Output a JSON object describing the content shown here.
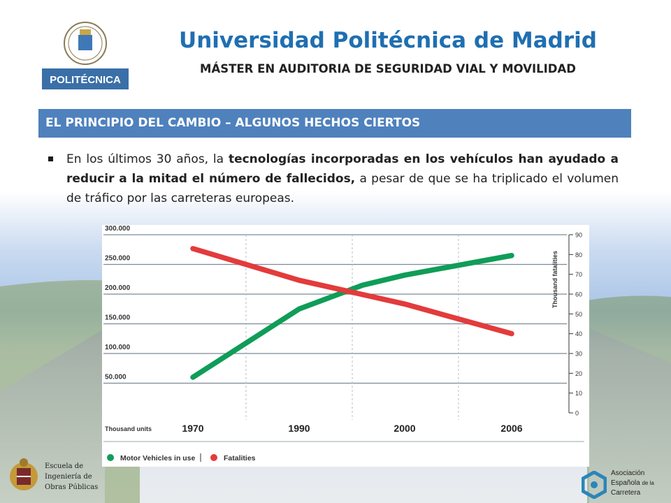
{
  "header": {
    "university": "Universidad Politécnica de Madrid",
    "master": "MÁSTER EN AUDITORIA DE SEGURIDAD VIAL Y MOVILIDAD",
    "logo_text": "POLITÉCNICA"
  },
  "section": {
    "title": "EL PRINCIPIO DEL CAMBIO – ALGUNOS HECHOS CIERTOS"
  },
  "bullet": {
    "part1": "En los últimos 30 años, la ",
    "bold": "tecnologías incorporadas en los vehículos han ayudado a reducir a la mitad el número de fallecidos,",
    "part2": " a pesar de que se ha triplicado el volumen de tráfico por las carreteras europeas."
  },
  "chart_data": {
    "type": "line",
    "x": [
      "1970",
      "1990",
      "2000",
      "2006"
    ],
    "x_positions": [
      1970,
      1990,
      2000,
      2006
    ],
    "xlabel": "Thousand units",
    "left_axis": {
      "ticks": [
        "50.000",
        "100.000",
        "150.000",
        "200.000",
        "250.000",
        "300.000"
      ],
      "tick_values": [
        50000,
        100000,
        150000,
        200000,
        250000,
        300000
      ],
      "ylim": [
        0,
        300000
      ]
    },
    "right_axis": {
      "label": "Thousand fatalities",
      "ticks": [
        "0",
        "10",
        "20",
        "30",
        "40",
        "50",
        "60",
        "70",
        "80",
        "90"
      ],
      "tick_values": [
        0,
        10,
        20,
        30,
        40,
        50,
        60,
        70,
        80,
        90
      ],
      "ylim": [
        0,
        90
      ]
    },
    "series": [
      {
        "name": "Motor Vehicles in use",
        "axis": "left",
        "color": "#0f9d58",
        "values": [
          [
            1970,
            60000
          ],
          [
            1990,
            175000
          ],
          [
            1996,
            215000
          ],
          [
            2000,
            232000
          ],
          [
            2006,
            265000
          ]
        ]
      },
      {
        "name": "Fatalities",
        "axis": "right",
        "color": "#e33b3b",
        "values": [
          [
            1970,
            83
          ],
          [
            1990,
            67
          ],
          [
            2000,
            55
          ],
          [
            2006,
            40
          ]
        ]
      }
    ],
    "legend": {
      "placement": "bottom",
      "items": [
        "Motor Vehicles in use",
        "Fatalities"
      ]
    },
    "grid": true
  },
  "footer": {
    "left_lines": [
      "Escuela de",
      "Ingeniería de",
      "Obras Públicas"
    ],
    "right_lines": [
      "Asociación",
      "Española",
      "Carretera"
    ],
    "right_small": [
      "de la"
    ]
  }
}
